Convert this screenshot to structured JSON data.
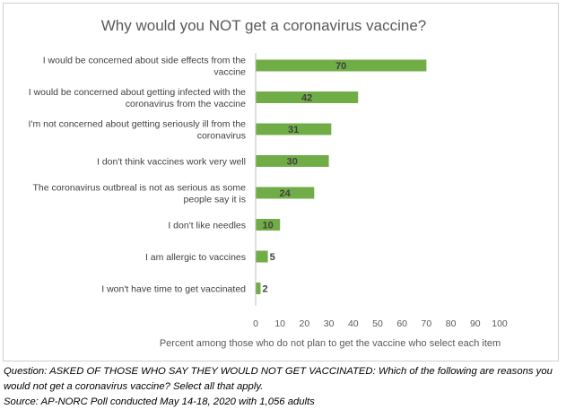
{
  "chart_data": {
    "type": "bar",
    "orientation": "horizontal",
    "title": "Why would you NOT get a coronavirus vaccine?",
    "xlabel": "Percent among those who do not plan to get the vaccine who select each item",
    "ylabel": "",
    "xlim": [
      0,
      100
    ],
    "xticks": [
      0,
      10,
      20,
      30,
      40,
      50,
      60,
      70,
      80,
      90,
      100
    ],
    "grid": false,
    "bar_color": "#70ad47",
    "categories": [
      [
        "I would be concerned about side effects from the",
        "vaccine"
      ],
      [
        "I would be concerned about getting infected with the",
        "coronavirus from the vaccine"
      ],
      [
        "I'm not concerned about getting seriously ill from the",
        "coronavirus"
      ],
      [
        "I don't think vaccines work very well"
      ],
      [
        "The coronavirus outbreal is not as serious as some",
        "people say it is"
      ],
      [
        "I don't like needles"
      ],
      [
        "I am allergic to vaccines"
      ],
      [
        "I won't have time to get vaccinated"
      ]
    ],
    "values": [
      70,
      42,
      31,
      30,
      24,
      10,
      5,
      2
    ]
  },
  "notes": {
    "question_line1": "Question: ASKED OF THOSE WHO SAY THEY WOULD NOT GET VACCINATED: Which of the following are reasons you",
    "question_line2": "would not get a coronavirus vaccine? Select all that apply.",
    "source": "Source: AP-NORC Poll conducted May 14-18, 2020 with 1,056 adults"
  }
}
